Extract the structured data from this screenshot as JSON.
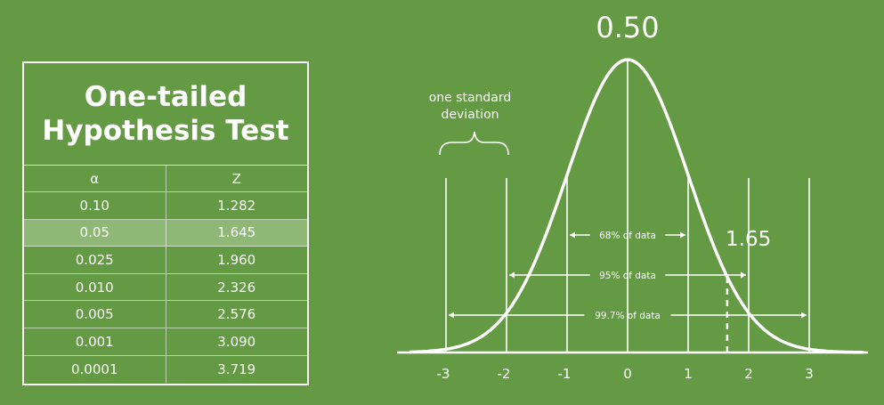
{
  "table": {
    "title_line1": "One-tailed",
    "title_line2": "Hypothesis Test",
    "headers": [
      "α",
      "Z"
    ],
    "rows": [
      {
        "alpha": "0.10",
        "z": "1.282",
        "highlighted": false
      },
      {
        "alpha": "0.05",
        "z": "1.645",
        "highlighted": true
      },
      {
        "alpha": "0.025",
        "z": "1.960",
        "highlighted": false
      },
      {
        "alpha": "0.010",
        "z": "2.326",
        "highlighted": false
      },
      {
        "alpha": "0.005",
        "z": "2.576",
        "highlighted": false
      },
      {
        "alpha": "0.001",
        "z": "3.090",
        "highlighted": false
      },
      {
        "alpha": "0.0001",
        "z": "3.719",
        "highlighted": false
      }
    ]
  },
  "diagram": {
    "peak_label": "0.50",
    "critical_label": "1.65",
    "critical_z": 1.645,
    "sd_label_line1": "one standard",
    "sd_label_line2": "deviation",
    "x_ticks": [
      "-3",
      "-2",
      "-1",
      "0",
      "1",
      "2",
      "3"
    ],
    "ranges": [
      {
        "label": "68% of data",
        "from": -1,
        "to": 1
      },
      {
        "label": "95% of data",
        "from": -2,
        "to": 2
      },
      {
        "label": "99.7% of data",
        "from": -3,
        "to": 3
      }
    ],
    "colors": {
      "background": "#639a43",
      "foreground": "#ffffff",
      "highlight_row": "#8fb775"
    }
  }
}
